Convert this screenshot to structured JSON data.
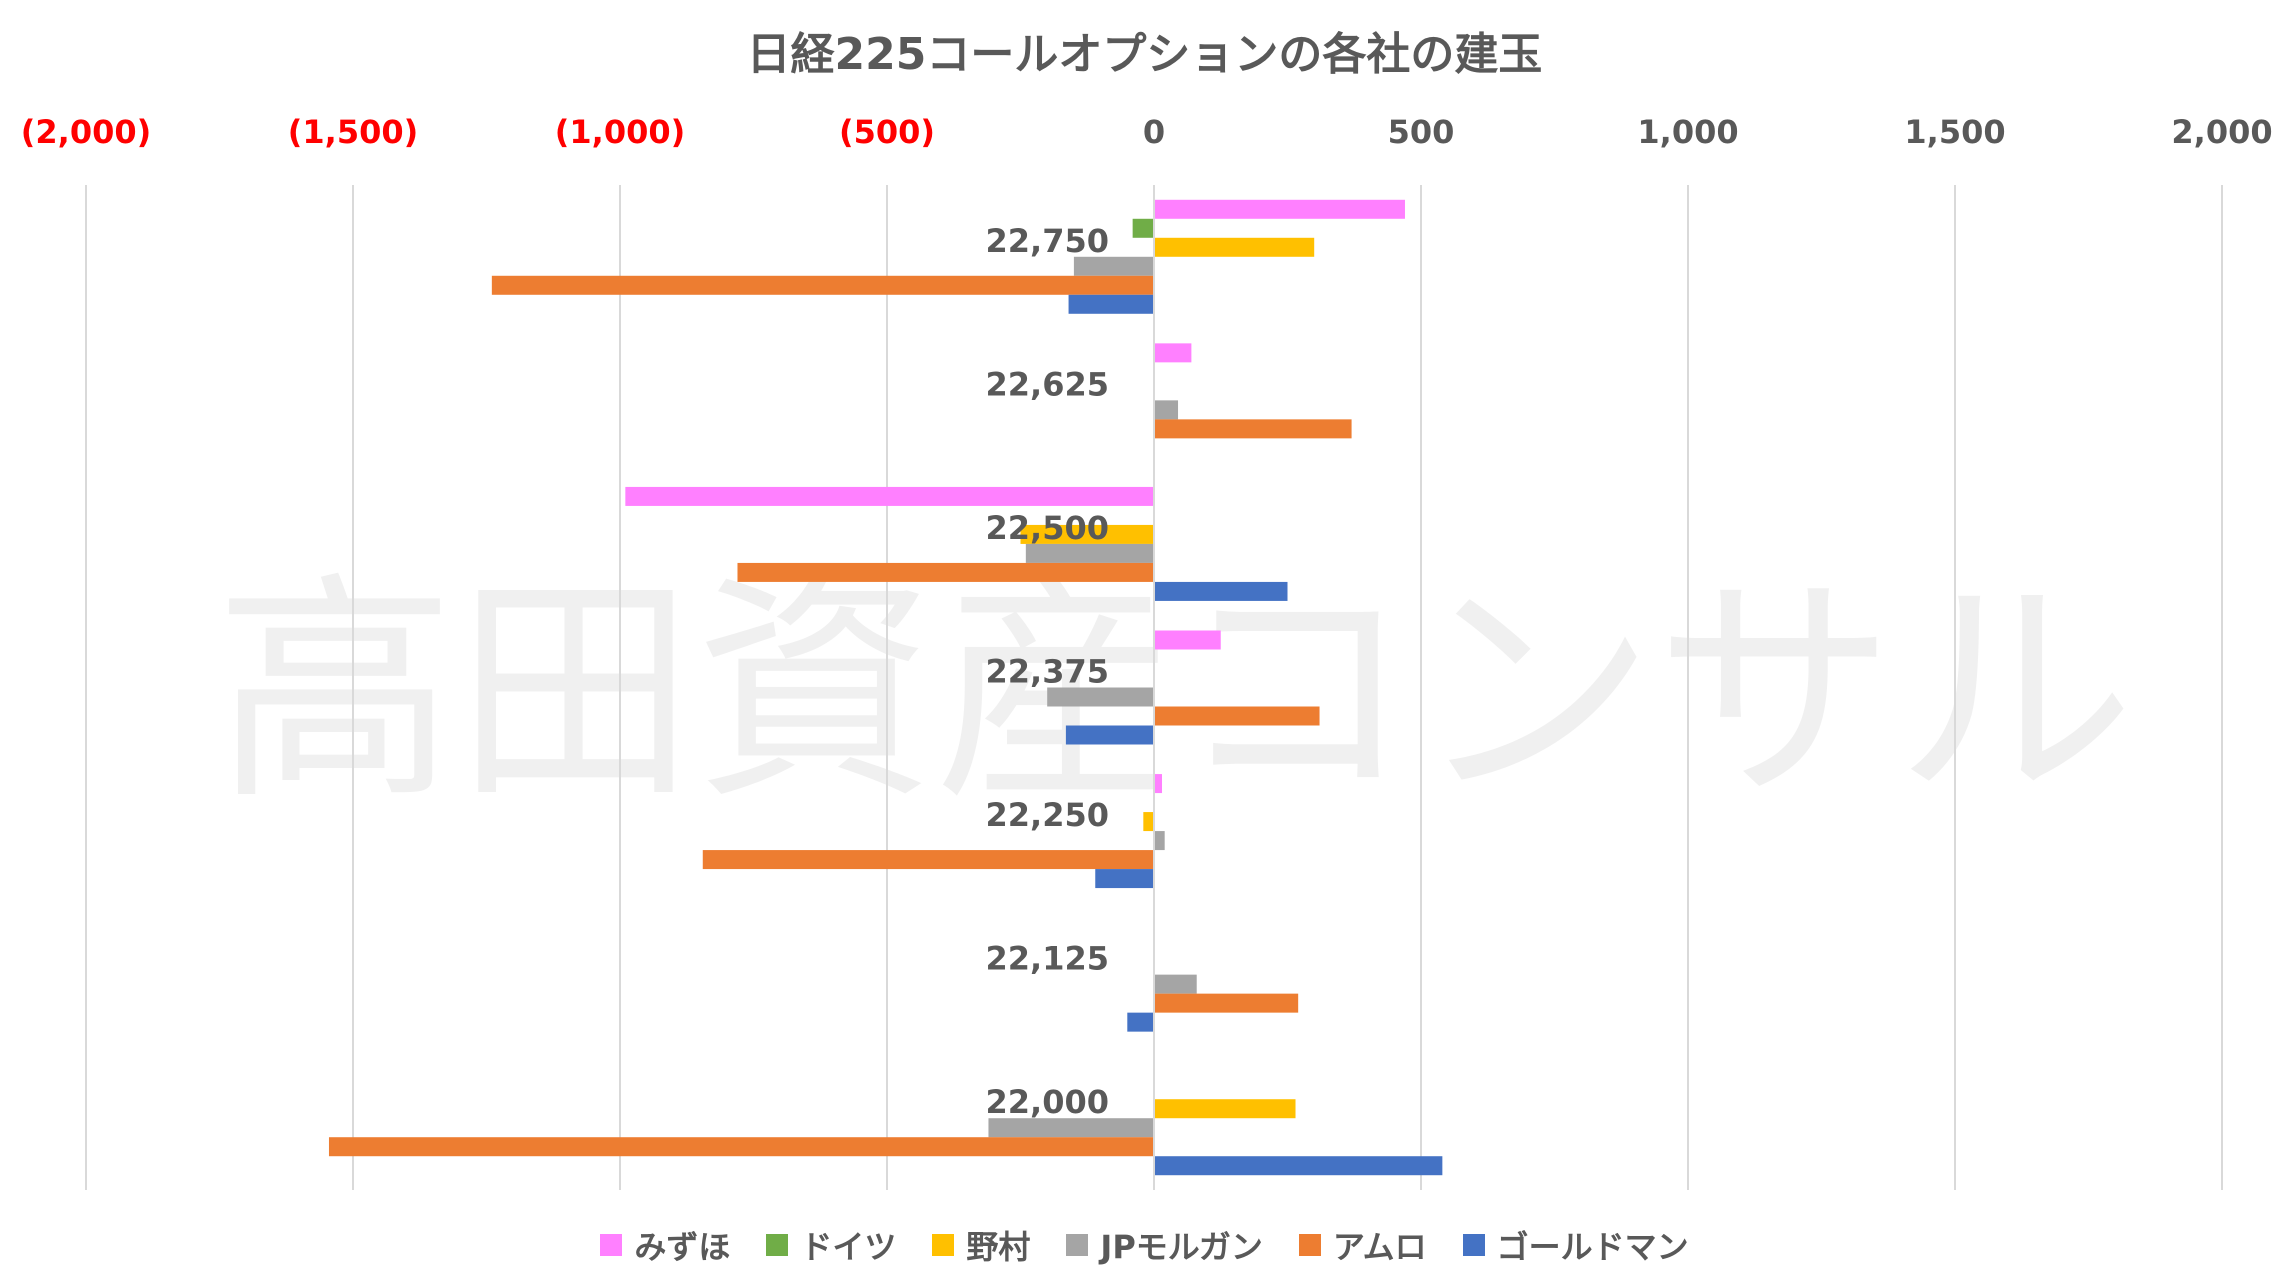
{
  "chart_data": {
    "type": "bar",
    "orientation": "horizontal",
    "title": "日経225コールオプションの各社の建玉",
    "xlim": [
      -2000,
      2000
    ],
    "x_ticks": [
      -2000,
      -1500,
      -1000,
      -500,
      0,
      500,
      1000,
      1500,
      2000
    ],
    "x_tick_labels": [
      "(2,000)",
      "(1,500)",
      "(1,000)",
      "(500)",
      "0",
      "500",
      "1,000",
      "1,500",
      "2,000"
    ],
    "negative_tick_color": "#ff0000",
    "positive_tick_color": "#595959",
    "grid": true,
    "legend_position": "bottom",
    "categories": [
      "22,750",
      "22,625",
      "22,500",
      "22,375",
      "22,250",
      "22,125",
      "22,000"
    ],
    "series": [
      {
        "name": "みずほ",
        "color": "#ff80ff",
        "values": [
          470,
          70,
          -990,
          125,
          15,
          0,
          0
        ]
      },
      {
        "name": "ドイツ",
        "color": "#70ad47",
        "values": [
          -40,
          0,
          0,
          0,
          0,
          0,
          0
        ]
      },
      {
        "name": "野村",
        "color": "#ffc000",
        "values": [
          300,
          0,
          -250,
          0,
          -20,
          0,
          265
        ]
      },
      {
        "name": "JPモルガン",
        "color": "#a5a5a5",
        "values": [
          -150,
          45,
          -240,
          -200,
          20,
          80,
          -310
        ]
      },
      {
        "name": "アムロ",
        "color": "#ed7d31",
        "values": [
          -1240,
          370,
          -780,
          310,
          -845,
          270,
          -1545
        ]
      },
      {
        "name": "ゴールドマン",
        "color": "#4472c4",
        "values": [
          -160,
          0,
          250,
          -165,
          -110,
          -50,
          540
        ]
      }
    ],
    "watermark": "高田資産コンサル"
  }
}
